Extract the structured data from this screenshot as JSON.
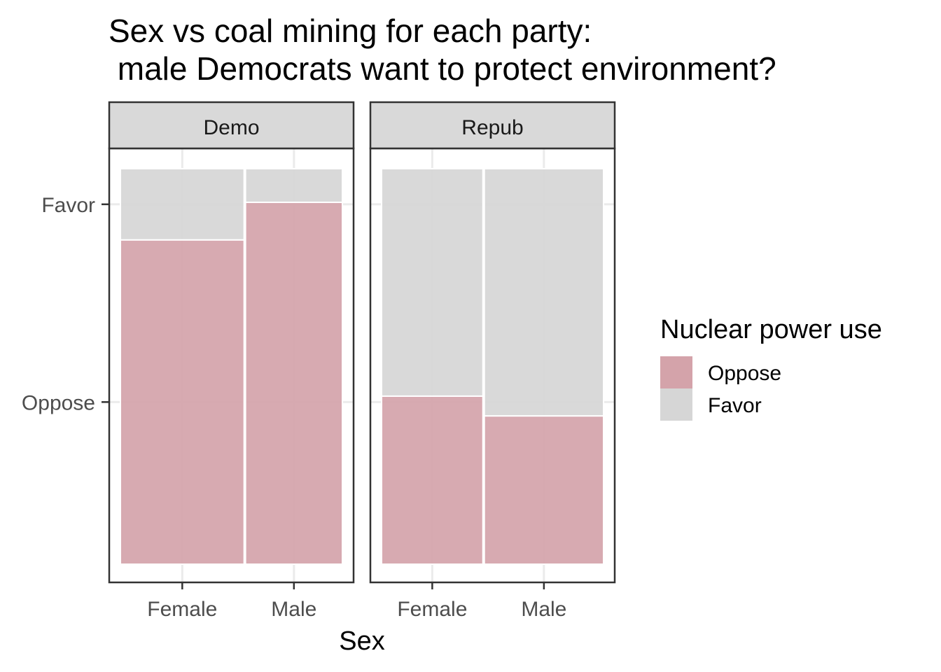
{
  "chart_data": {
    "type": "bar",
    "subtype": "faceted mosaic (100% stacked, width proportional to group size)",
    "title": "Sex vs coal mining for each party:",
    "subtitle": " male Democrats want to protect environment?",
    "xlabel": "Sex",
    "ylabel": "",
    "y_tick_labels": [
      "Favor",
      "Oppose"
    ],
    "grid": true,
    "ylim": [
      0,
      1
    ],
    "legend": {
      "title": "Nuclear power use",
      "position": "right",
      "entries": [
        {
          "label": "Oppose",
          "color": "#d4a3aa"
        },
        {
          "label": "Favor",
          "color": "#d6d6d6"
        }
      ]
    },
    "series_order": [
      "Oppose",
      "Favor"
    ],
    "facets": [
      {
        "name": "Demo",
        "categories": [
          {
            "label": "Female",
            "width_share": 0.56,
            "values": {
              "Oppose": 0.82,
              "Favor": 0.18
            }
          },
          {
            "label": "Male",
            "width_share": 0.44,
            "values": {
              "Oppose": 0.915,
              "Favor": 0.085
            }
          }
        ]
      },
      {
        "name": "Repub",
        "categories": [
          {
            "label": "Female",
            "width_share": 0.46,
            "values": {
              "Oppose": 0.425,
              "Favor": 0.575
            }
          },
          {
            "label": "Male",
            "width_share": 0.54,
            "values": {
              "Oppose": 0.375,
              "Favor": 0.625
            }
          }
        ]
      }
    ]
  }
}
